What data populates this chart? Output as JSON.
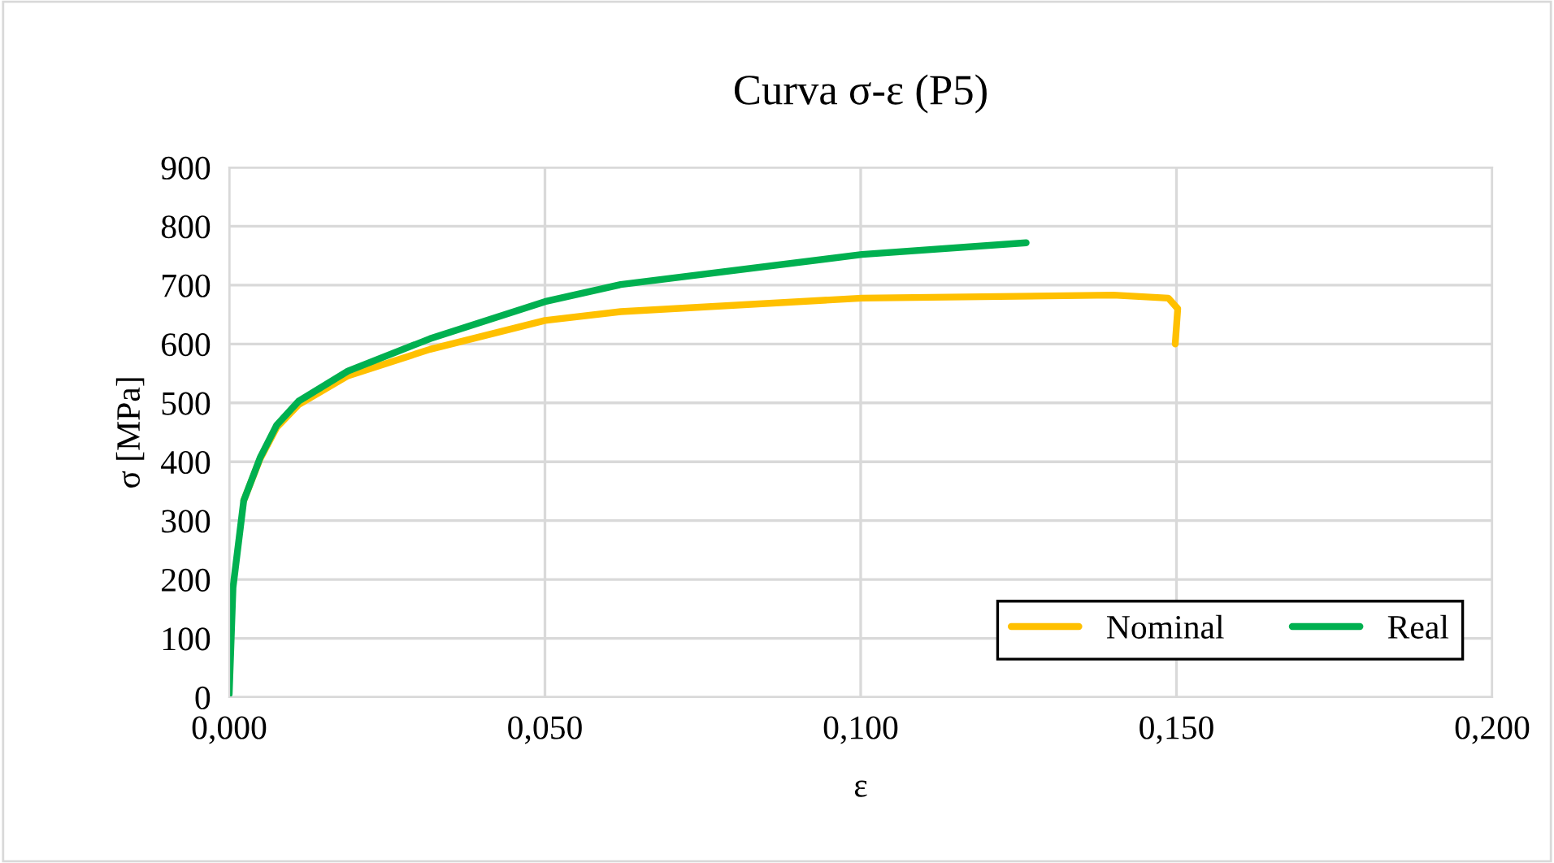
{
  "chart_data": {
    "type": "line",
    "title": "Curva σ-ε (P5)",
    "xlabel": "ε",
    "ylabel": "σ [MPa]",
    "xlim": [
      0,
      0.2
    ],
    "xticks": [
      {
        "value": 0,
        "label": "0,000"
      },
      {
        "value": 0.05,
        "label": "0,050"
      },
      {
        "value": 0.1,
        "label": "0,100"
      },
      {
        "value": 0.15,
        "label": "0,150"
      },
      {
        "value": 0.2,
        "label": "0,200"
      }
    ],
    "ylim": [
      0,
      900
    ],
    "yticks": [
      0,
      100,
      200,
      300,
      400,
      500,
      600,
      700,
      800,
      900
    ],
    "grid": true,
    "legend": "bottom right",
    "marker": "none",
    "line_style": "solid",
    "series": [
      {
        "name": "Nominal",
        "color": "#ffc000",
        "x": [
          0.0023,
          0.0049,
          0.0075,
          0.011,
          0.0188,
          0.0318,
          0.05,
          0.062,
          0.1002,
          0.14,
          0.1487,
          0.1502,
          0.1498
        ],
        "values": [
          334,
          405,
          458,
          497,
          546,
          591,
          640,
          655,
          678,
          683,
          678,
          660,
          600
        ]
      },
      {
        "name": "Real",
        "color": "#00b050",
        "x": [
          0,
          0.0006,
          0.0023,
          0.0049,
          0.0075,
          0.011,
          0.0188,
          0.0318,
          0.05,
          0.062,
          0.1002,
          0.1262
        ],
        "values": [
          5,
          186,
          334,
          407,
          462,
          503,
          554,
          609,
          672,
          701,
          752,
          772
        ]
      }
    ]
  }
}
